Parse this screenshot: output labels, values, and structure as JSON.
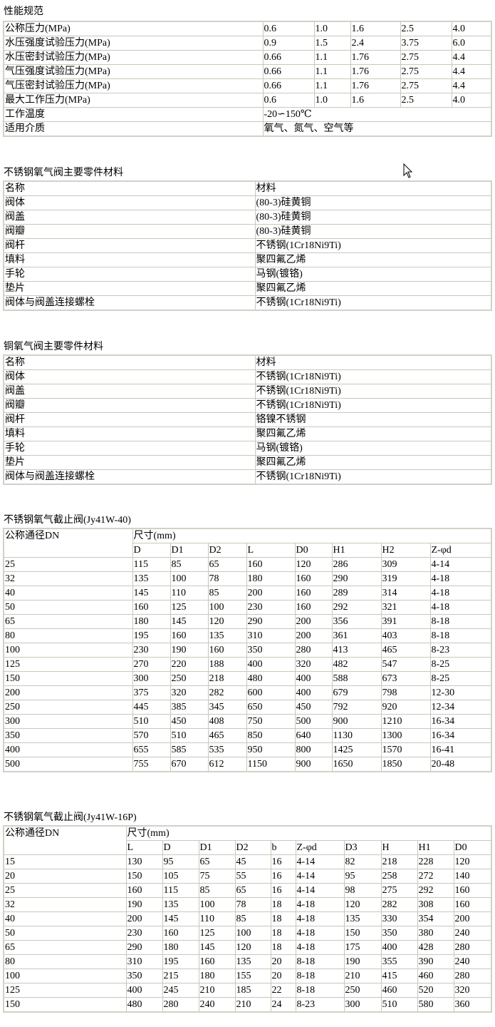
{
  "spec": {
    "title": "性能规范",
    "rows": [
      [
        "公称压力(MPa)",
        "0.6",
        "1.0",
        "1.6",
        "2.5",
        "4.0"
      ],
      [
        "水压强度试验压力(MPa)",
        "0.9",
        "1.5",
        "2.4",
        "3.75",
        "6.0"
      ],
      [
        "水压密封试验压力(MPa)",
        "0.66",
        "1.1",
        "1.76",
        "2.75",
        "4.4"
      ],
      [
        "气压强度试验压力(MPa)",
        "0.66",
        "1.1",
        "1.76",
        "2.75",
        "4.4"
      ],
      [
        "气压密封试验压力(MPa)",
        "0.66",
        "1.1",
        "1.76",
        "2.75",
        "4.4"
      ],
      [
        "最大工作压力(MPa)",
        "0.6",
        "1.0",
        "1.6",
        "2.5",
        "4.0"
      ]
    ],
    "span_rows": [
      [
        "工作温度",
        "-20∽150℃"
      ],
      [
        "适用介质",
        "氧气、氮气、空气等"
      ]
    ]
  },
  "materials_ss": {
    "title": "不锈钢氧气阀主要零件材料",
    "header": [
      "名称",
      "材料"
    ],
    "rows": [
      [
        "阀体",
        "(80-3)硅黄铜"
      ],
      [
        "阀盖",
        "(80-3)硅黄铜"
      ],
      [
        "阀瓣",
        "(80-3)硅黄铜"
      ],
      [
        "阀杆",
        "不锈钢(1Cr18Ni9Ti)"
      ],
      [
        "填料",
        "聚四氟乙烯"
      ],
      [
        "手轮",
        "马钢(镀铬)"
      ],
      [
        "垫片",
        "聚四氟乙烯"
      ],
      [
        "阀体与阀盖连接螺栓",
        "不锈钢(1Cr18Ni9Ti)"
      ]
    ]
  },
  "materials_cu": {
    "title": "铜氧气阀主要零件材料",
    "header": [
      "名称",
      "材料"
    ],
    "rows": [
      [
        "阀体",
        "不锈钢(1Cr18Ni9Ti)"
      ],
      [
        "阀盖",
        "不锈钢(1Cr18Ni9Ti)"
      ],
      [
        "阀瓣",
        "不锈钢(1Cr18Ni9Ti)"
      ],
      [
        "阀杆",
        "铬镍不锈钢"
      ],
      [
        "填料",
        "聚四氟乙烯"
      ],
      [
        "手轮",
        "马钢(镀铬)"
      ],
      [
        "垫片",
        "聚四氟乙烯"
      ],
      [
        "阀体与阀盖连接螺栓",
        "不锈钢(1Cr18Ni9Ti)"
      ]
    ]
  },
  "dims_40": {
    "title": "不锈钢氧气截止阀(Jy41W-40)",
    "dn_label": "公称通径DN",
    "size_label": "尺寸(mm)",
    "columns": [
      "D",
      "D1",
      "D2",
      "L",
      "D0",
      "H1",
      "H2",
      "Z-φd"
    ],
    "rows": [
      [
        "25",
        "115",
        "85",
        "65",
        "160",
        "120",
        "286",
        "309",
        "4-14"
      ],
      [
        "32",
        "135",
        "100",
        "78",
        "180",
        "160",
        "290",
        "319",
        "4-18"
      ],
      [
        "40",
        "145",
        "110",
        "85",
        "200",
        "160",
        "289",
        "314",
        "4-18"
      ],
      [
        "50",
        "160",
        "125",
        "100",
        "230",
        "160",
        "292",
        "321",
        "4-18"
      ],
      [
        "65",
        "180",
        "145",
        "120",
        "290",
        "200",
        "356",
        "391",
        "8-18"
      ],
      [
        "80",
        "195",
        "160",
        "135",
        "310",
        "200",
        "361",
        "403",
        "8-18"
      ],
      [
        "100",
        "230",
        "190",
        "160",
        "350",
        "280",
        "413",
        "465",
        "8-23"
      ],
      [
        "125",
        "270",
        "220",
        "188",
        "400",
        "320",
        "482",
        "547",
        "8-25"
      ],
      [
        "150",
        "300",
        "250",
        "218",
        "480",
        "400",
        "588",
        "673",
        "8-25"
      ],
      [
        "200",
        "375",
        "320",
        "282",
        "600",
        "400",
        "679",
        "798",
        "12-30"
      ],
      [
        "250",
        "445",
        "385",
        "345",
        "650",
        "450",
        "792",
        "920",
        "12-34"
      ],
      [
        "300",
        "510",
        "450",
        "408",
        "750",
        "500",
        "900",
        "1210",
        "16-34"
      ],
      [
        "350",
        "570",
        "510",
        "465",
        "850",
        "640",
        "1130",
        "1300",
        "16-34"
      ],
      [
        "400",
        "655",
        "585",
        "535",
        "950",
        "800",
        "1425",
        "1570",
        "16-41"
      ],
      [
        "500",
        "755",
        "670",
        "612",
        "1150",
        "900",
        "1650",
        "1850",
        "20-48"
      ]
    ]
  },
  "dims_16p": {
    "title": "不锈钢氧气截止阀(Jy41W-16P)",
    "dn_label": "公称通径DN",
    "size_label": "尺寸(mm)",
    "columns": [
      "L",
      "D",
      "D1",
      "D2",
      "b",
      "Z-φd",
      "D3",
      "H",
      "H1",
      "D0"
    ],
    "rows": [
      [
        "15",
        "130",
        "95",
        "65",
        "45",
        "16",
        "4-14",
        "82",
        "218",
        "228",
        "120"
      ],
      [
        "20",
        "150",
        "105",
        "75",
        "55",
        "16",
        "4-14",
        "95",
        "258",
        "272",
        "140"
      ],
      [
        "25",
        "160",
        "115",
        "85",
        "65",
        "16",
        "4-14",
        "98",
        "275",
        "292",
        "160"
      ],
      [
        "32",
        "190",
        "135",
        "100",
        "78",
        "18",
        "4-18",
        "120",
        "282",
        "308",
        "160"
      ],
      [
        "40",
        "200",
        "145",
        "110",
        "85",
        "18",
        "4-18",
        "135",
        "330",
        "354",
        "200"
      ],
      [
        "50",
        "230",
        "160",
        "125",
        "100",
        "18",
        "4-18",
        "150",
        "350",
        "380",
        "240"
      ],
      [
        "65",
        "290",
        "180",
        "145",
        "120",
        "18",
        "4-18",
        "175",
        "400",
        "428",
        "280"
      ],
      [
        "80",
        "310",
        "195",
        "160",
        "135",
        "20",
        "8-18",
        "190",
        "355",
        "390",
        "240"
      ],
      [
        "100",
        "350",
        "215",
        "180",
        "155",
        "20",
        "8-18",
        "210",
        "415",
        "460",
        "280"
      ],
      [
        "125",
        "400",
        "245",
        "210",
        "185",
        "22",
        "8-18",
        "250",
        "460",
        "520",
        "320"
      ],
      [
        "150",
        "480",
        "280",
        "240",
        "210",
        "24",
        "8-23",
        "300",
        "510",
        "580",
        "360"
      ]
    ]
  },
  "cursor": {
    "icon": "arrow-pointer-icon"
  }
}
